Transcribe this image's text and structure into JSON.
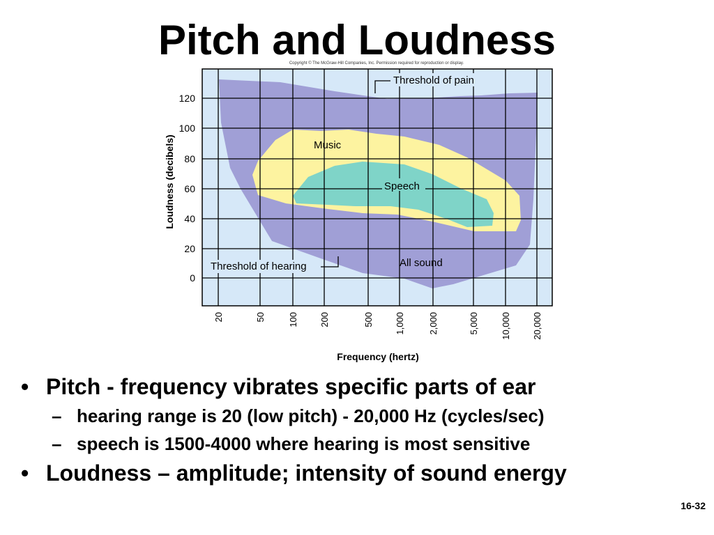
{
  "slide": {
    "title": "Pitch and Loudness",
    "page_number": "16-32"
  },
  "figure": {
    "copyright": "Copyright © The McGraw-Hill Companies, Inc. Permission required for reproduction or display.",
    "y_axis_label": "Loudness (decibels)",
    "x_axis_label": "Frequency (hertz)",
    "y_ticks": [
      "120",
      "100",
      "80",
      "60",
      "40",
      "20",
      "0"
    ],
    "x_ticks": [
      "20",
      "50",
      "100",
      "200",
      "500",
      "1,000",
      "2,000",
      "5,000",
      "10,000",
      "20,000"
    ],
    "labels": {
      "threshold_of_pain": "Threshold of pain",
      "threshold_of_hearing": "Threshold of hearing",
      "music": "Music",
      "speech": "Speech",
      "all_sound": "All sound"
    },
    "colors": {
      "background": "#d6e8f8",
      "all_sound": "#a09fd6",
      "music": "#fdf3a0",
      "speech": "#7fd4c8",
      "grid": "#000000"
    }
  },
  "bullets": [
    {
      "text": "Pitch - frequency vibrates specific parts of ear",
      "sub": [
        "hearing range is 20 (low pitch) - 20,000 Hz (cycles/sec)",
        "speech is 1500-4000 where hearing is most sensitive"
      ]
    },
    {
      "text": "Loudness – amplitude; intensity of sound energy",
      "sub": []
    }
  ],
  "markers": {
    "bullet": "•",
    "dash": "–"
  }
}
